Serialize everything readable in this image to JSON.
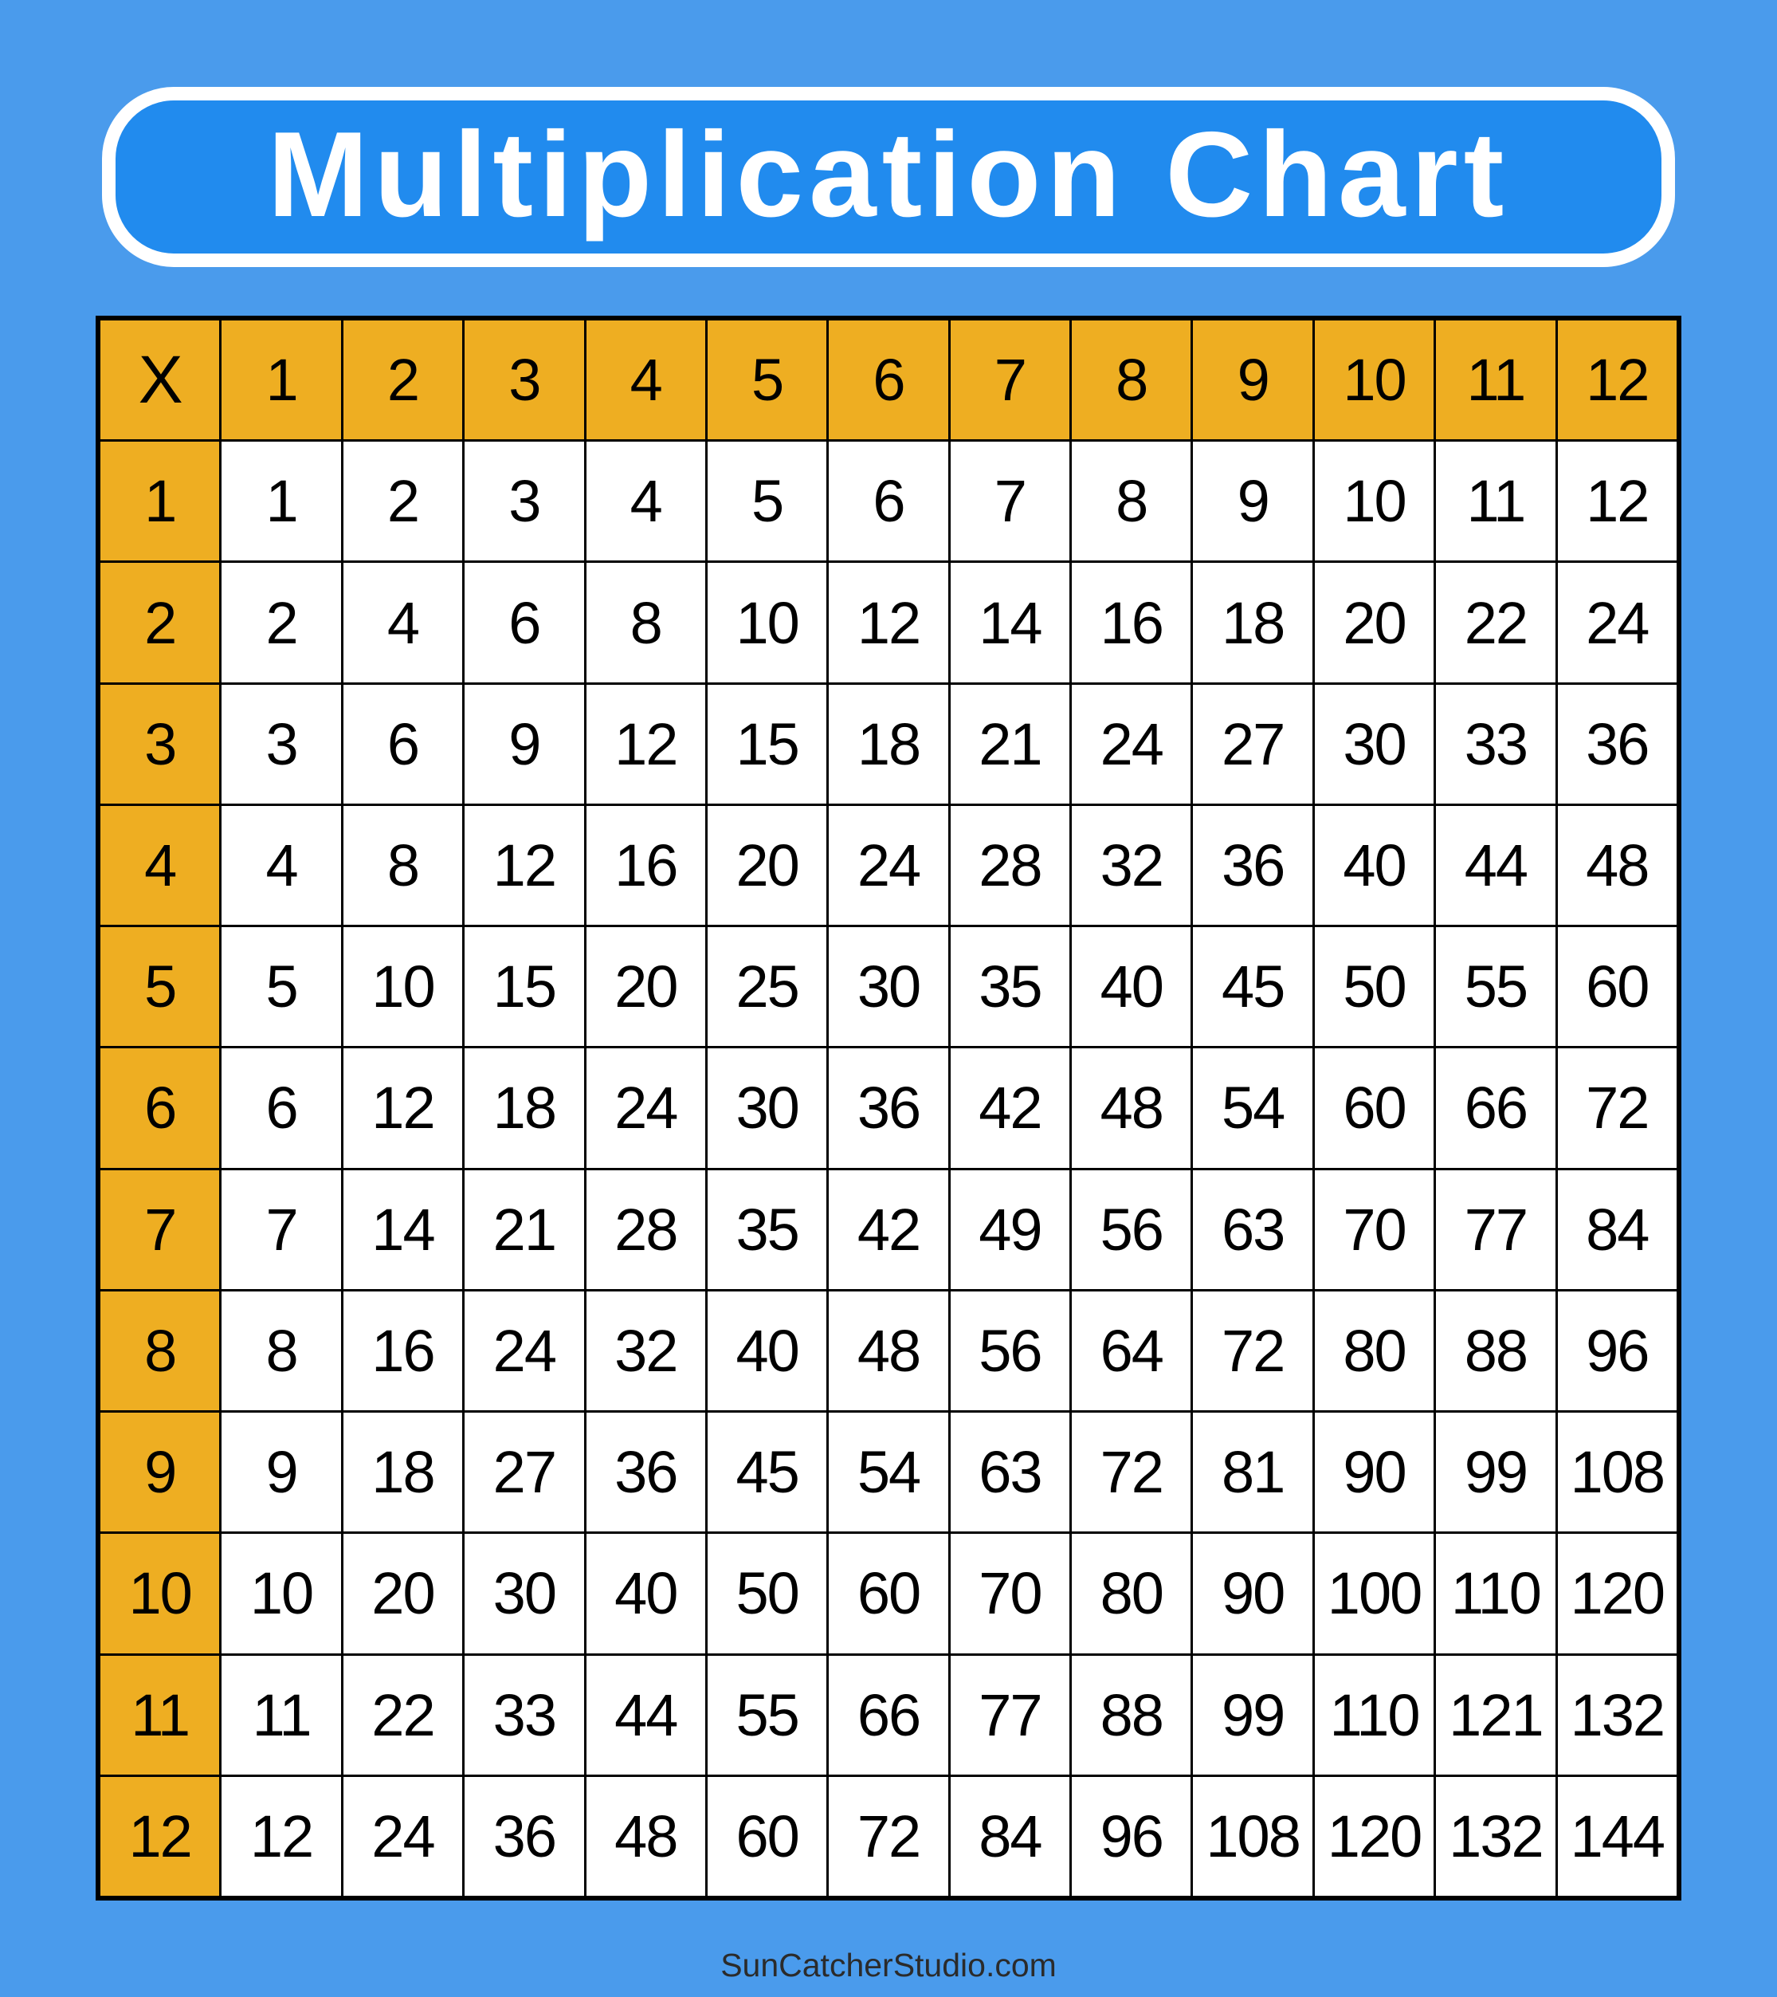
{
  "title": "Multiplication Chart",
  "colors": {
    "background": "#4A9BEC",
    "title_fill": "#218BEE",
    "header_fill": "#EEAE22",
    "cell_fill": "#FFFFFF",
    "grid_lines": "#000000"
  },
  "table": {
    "corner": "X",
    "column_headers": [
      "1",
      "2",
      "3",
      "4",
      "5",
      "6",
      "7",
      "8",
      "9",
      "10",
      "11",
      "12"
    ],
    "rows": [
      {
        "header": "1",
        "values": [
          "1",
          "2",
          "3",
          "4",
          "5",
          "6",
          "7",
          "8",
          "9",
          "10",
          "11",
          "12"
        ]
      },
      {
        "header": "2",
        "values": [
          "2",
          "4",
          "6",
          "8",
          "10",
          "12",
          "14",
          "16",
          "18",
          "20",
          "22",
          "24"
        ]
      },
      {
        "header": "3",
        "values": [
          "3",
          "6",
          "9",
          "12",
          "15",
          "18",
          "21",
          "24",
          "27",
          "30",
          "33",
          "36"
        ]
      },
      {
        "header": "4",
        "values": [
          "4",
          "8",
          "12",
          "16",
          "20",
          "24",
          "28",
          "32",
          "36",
          "40",
          "44",
          "48"
        ]
      },
      {
        "header": "5",
        "values": [
          "5",
          "10",
          "15",
          "20",
          "25",
          "30",
          "35",
          "40",
          "45",
          "50",
          "55",
          "60"
        ]
      },
      {
        "header": "6",
        "values": [
          "6",
          "12",
          "18",
          "24",
          "30",
          "36",
          "42",
          "48",
          "54",
          "60",
          "66",
          "72"
        ]
      },
      {
        "header": "7",
        "values": [
          "7",
          "14",
          "21",
          "28",
          "35",
          "42",
          "49",
          "56",
          "63",
          "70",
          "77",
          "84"
        ]
      },
      {
        "header": "8",
        "values": [
          "8",
          "16",
          "24",
          "32",
          "40",
          "48",
          "56",
          "64",
          "72",
          "80",
          "88",
          "96"
        ]
      },
      {
        "header": "9",
        "values": [
          "9",
          "18",
          "27",
          "36",
          "45",
          "54",
          "63",
          "72",
          "81",
          "90",
          "99",
          "108"
        ]
      },
      {
        "header": "10",
        "values": [
          "10",
          "20",
          "30",
          "40",
          "50",
          "60",
          "70",
          "80",
          "90",
          "100",
          "110",
          "120"
        ]
      },
      {
        "header": "11",
        "values": [
          "11",
          "22",
          "33",
          "44",
          "55",
          "66",
          "77",
          "88",
          "99",
          "110",
          "121",
          "132"
        ]
      },
      {
        "header": "12",
        "values": [
          "12",
          "24",
          "36",
          "48",
          "60",
          "72",
          "84",
          "96",
          "108",
          "120",
          "132",
          "144"
        ]
      }
    ]
  },
  "footer": "SunCatcherStudio.com"
}
